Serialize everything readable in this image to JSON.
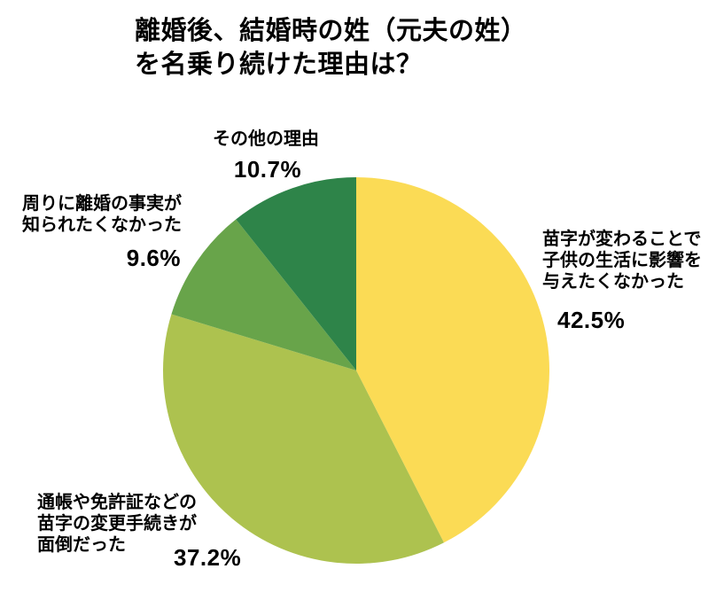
{
  "title": {
    "full": "離婚後、結婚時の姓（元夫の姓）を名乗り続けた理由は？",
    "lines": [
      "離婚後、結婚時の姓（元夫の姓）",
      "を名乗り続けた理由は？"
    ]
  },
  "chart_data": {
    "type": "pie",
    "title": "離婚後、結婚時の姓（元夫の姓）を名乗り続けた理由は？",
    "start_angle_deg": 0,
    "start_position": "12-oclock",
    "direction": "clockwise",
    "total": 100.0,
    "legend_position": "none",
    "slices": [
      {
        "label": "苗字が変わることで子供の生活に影響を与えたくなかった",
        "label_lines": [
          "苗字が変わることで",
          "子供の生活に影響を",
          "与えたくなかった"
        ],
        "value": 42.5,
        "percent_label": "42.5%",
        "color": "#FBDB55"
      },
      {
        "label": "通帳や免許証などの苗字の変更手続きが面倒だった",
        "label_lines": [
          "通帳や免許証などの",
          "苗字の変更手続きが",
          "面倒だった"
        ],
        "value": 37.2,
        "percent_label": "37.2%",
        "color": "#ADC24F"
      },
      {
        "label": "周りに離婚の事実が知られたくなかった",
        "label_lines": [
          "周りに離婚の事実が",
          "知られたくなかった"
        ],
        "value": 9.6,
        "percent_label": "9.6%",
        "color": "#68A44A"
      },
      {
        "label": "その他の理由",
        "label_lines": [
          "その他の理由"
        ],
        "value": 10.7,
        "percent_label": "10.7%",
        "color": "#2E8449"
      }
    ]
  }
}
